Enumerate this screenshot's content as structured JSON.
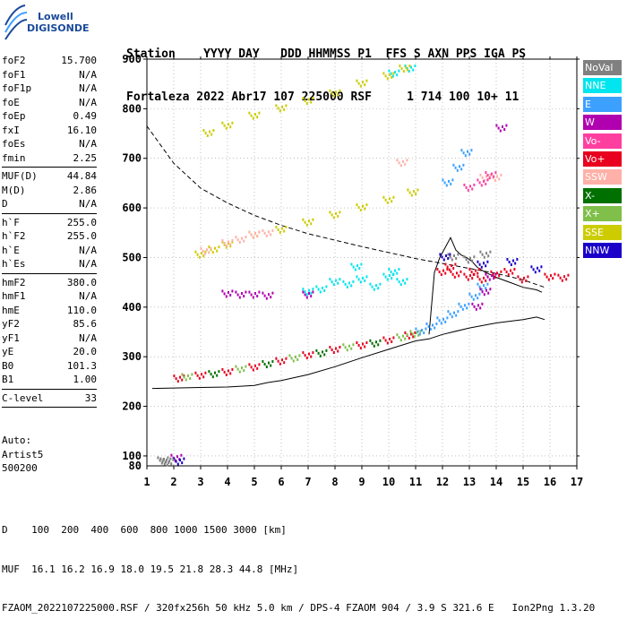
{
  "logo": {
    "line1": "Lowell",
    "line2": "DIGISONDE"
  },
  "header": {
    "labels": "Station    YYYY DAY   DDD HHMMSS P1  FFS S AXN PPS IGA PS",
    "values": "Fortaleza 2022 Abr17 107 225000 RSF     1 714 100 10+ 11"
  },
  "params": [
    {
      "key": "foF2",
      "value": "15.700"
    },
    {
      "key": "foF1",
      "value": "N/A"
    },
    {
      "key": "foF1p",
      "value": "N/A"
    },
    {
      "key": "foE",
      "value": "N/A"
    },
    {
      "key": "foEp",
      "value": "0.49"
    },
    {
      "key": "fxI",
      "value": "16.10"
    },
    {
      "key": "foEs",
      "value": "N/A"
    },
    {
      "key": "fmin",
      "value": "2.25"
    },
    {
      "sep": true
    },
    {
      "key": "MUF(D)",
      "value": "44.84"
    },
    {
      "key": "M(D)",
      "value": "2.86"
    },
    {
      "key": "D",
      "value": "N/A"
    },
    {
      "sep": true
    },
    {
      "key": "h`F",
      "value": "255.0"
    },
    {
      "key": "h`F2",
      "value": "255.0"
    },
    {
      "key": "h`E",
      "value": "N/A"
    },
    {
      "key": "h`Es",
      "value": "N/A"
    },
    {
      "sep": true
    },
    {
      "key": "hmF2",
      "value": "380.0"
    },
    {
      "key": "hmF1",
      "value": "N/A"
    },
    {
      "key": "hmE",
      "value": "110.0"
    },
    {
      "key": "yF2",
      "value": "85.6"
    },
    {
      "key": "yF1",
      "value": "N/A"
    },
    {
      "key": "yE",
      "value": "20.0"
    },
    {
      "key": "B0",
      "value": "101.3"
    },
    {
      "key": "B1",
      "value": "1.00"
    },
    {
      "sep": true
    },
    {
      "key": "C-level",
      "value": "33"
    },
    {
      "sep": true
    }
  ],
  "auto": [
    "Auto:",
    "Artist5",
    "500200"
  ],
  "footer": {
    "line1": "D    100  200  400  600  800 1000 1500 3000 [km]",
    "line2": "MUF  16.1 16.2 16.9 18.0 19.5 21.8 28.3 44.8 [MHz]",
    "line3": "FZAOM_2022107225000.RSF / 320fx256h 50 kHz 5.0 km / DPS-4 FZAOM 904 / 3.9 S 321.6 E   Ion2Png 1.3.20"
  },
  "legend": [
    {
      "label": "NoVal",
      "color": "#808080"
    },
    {
      "label": "NNE",
      "color": "#00e5ee"
    },
    {
      "label": "E",
      "color": "#3ca0ff"
    },
    {
      "label": "W",
      "color": "#b000b0"
    },
    {
      "label": "Vo-",
      "color": "#ff3fa0"
    },
    {
      "label": "Vo+",
      "color": "#e8001e"
    },
    {
      "label": "SSW",
      "color": "#ffb0a8"
    },
    {
      "label": "X-",
      "color": "#007000"
    },
    {
      "label": "X+",
      "color": "#7fbf4a"
    },
    {
      "label": "SSE",
      "color": "#cccc00"
    },
    {
      "label": "NNW",
      "color": "#1a00c8"
    }
  ],
  "chart_data": {
    "type": "scatter",
    "xlim": [
      1,
      17
    ],
    "ylim": [
      80,
      900
    ],
    "xticks": [
      1,
      2,
      3,
      4,
      5,
      6,
      7,
      8,
      9,
      10,
      11,
      12,
      13,
      14,
      15,
      16,
      17
    ],
    "yticks": [
      100,
      200,
      300,
      400,
      500,
      600,
      700,
      800,
      900
    ],
    "ytick_labels_extra": [
      {
        "value": 80,
        "label": "80"
      }
    ],
    "series": [
      {
        "name": "Vo+",
        "color": "#e8001e",
        "points": [
          [
            2.2,
            255
          ],
          [
            3,
            261
          ],
          [
            4,
            268
          ],
          [
            5,
            278
          ],
          [
            6,
            290
          ],
          [
            7,
            302
          ],
          [
            8,
            313
          ],
          [
            9,
            322
          ],
          [
            10,
            332
          ],
          [
            10.8,
            342
          ],
          [
            12,
            470
          ],
          [
            12.5,
            465
          ],
          [
            13,
            460
          ],
          [
            13.5,
            455
          ],
          [
            14,
            465
          ],
          [
            14.5,
            470
          ],
          [
            15,
            455
          ],
          [
            16,
            460
          ],
          [
            16.5,
            458
          ],
          [
            12.3,
            480
          ],
          [
            13.2,
            470
          ]
        ]
      },
      {
        "name": "X+",
        "color": "#7fbf4a",
        "points": [
          [
            2.5,
            258
          ],
          [
            4.5,
            274
          ],
          [
            6.5,
            296
          ],
          [
            8.5,
            318
          ],
          [
            10.5,
            338
          ],
          [
            11,
            345
          ]
        ]
      },
      {
        "name": "X-",
        "color": "#007000",
        "points": [
          [
            3.5,
            264
          ],
          [
            5.5,
            284
          ],
          [
            7.5,
            306
          ],
          [
            9.5,
            326
          ]
        ]
      },
      {
        "name": "E",
        "color": "#3ca0ff",
        "points": [
          [
            11.2,
            350
          ],
          [
            11.6,
            360
          ],
          [
            12,
            372
          ],
          [
            12.4,
            385
          ],
          [
            12.8,
            400
          ],
          [
            13.2,
            420
          ],
          [
            13.5,
            440
          ],
          [
            12.2,
            650
          ],
          [
            12.6,
            680
          ],
          [
            12.9,
            710
          ]
        ]
      },
      {
        "name": "W",
        "color": "#b000b0",
        "points": [
          [
            4,
            426
          ],
          [
            4.5,
            424
          ],
          [
            5,
            424
          ],
          [
            5.5,
            422
          ],
          [
            7,
            424
          ],
          [
            13.3,
            400
          ],
          [
            13.6,
            430
          ],
          [
            13.8,
            460
          ],
          [
            14.2,
            760
          ],
          [
            2.1,
            95
          ]
        ]
      },
      {
        "name": "NNE",
        "color": "#00e5ee",
        "points": [
          [
            7,
            430
          ],
          [
            7.5,
            435
          ],
          [
            8,
            450
          ],
          [
            8.5,
            445
          ],
          [
            9,
            455
          ],
          [
            9.5,
            440
          ],
          [
            10,
            460
          ],
          [
            10.5,
            450
          ],
          [
            8.8,
            480
          ],
          [
            10.2,
            470
          ],
          [
            10.8,
            880
          ],
          [
            10.2,
            870
          ]
        ]
      },
      {
        "name": "SSE",
        "color": "#cccc00",
        "points": [
          [
            3,
            505
          ],
          [
            3.5,
            515
          ],
          [
            4,
            525
          ],
          [
            5,
            545
          ],
          [
            6,
            555
          ],
          [
            7,
            570
          ],
          [
            8,
            585
          ],
          [
            9,
            600
          ],
          [
            10,
            615
          ],
          [
            10.9,
            630
          ],
          [
            3.3,
            750
          ],
          [
            4,
            765
          ],
          [
            5,
            785
          ],
          [
            6,
            800
          ],
          [
            7,
            815
          ],
          [
            8,
            830
          ],
          [
            9,
            850
          ],
          [
            10,
            865
          ],
          [
            10.6,
            880
          ]
        ]
      },
      {
        "name": "SSW",
        "color": "#ffb0a8",
        "points": [
          [
            3.2,
            512
          ],
          [
            4,
            528
          ],
          [
            4.5,
            535
          ],
          [
            5,
            545
          ],
          [
            5.5,
            548
          ],
          [
            13.6,
            660
          ],
          [
            14,
            660
          ],
          [
            10.5,
            690
          ]
        ]
      },
      {
        "name": "Vo-",
        "color": "#ff3fa0",
        "points": [
          [
            13,
            640
          ],
          [
            13.5,
            650
          ],
          [
            13.8,
            665
          ]
        ]
      },
      {
        "name": "NNW",
        "color": "#1a00c8",
        "points": [
          [
            12.1,
            500
          ],
          [
            13.5,
            485
          ],
          [
            14.6,
            490
          ],
          [
            15.5,
            475
          ],
          [
            2.2,
            88
          ]
        ]
      },
      {
        "name": "NoVal",
        "color": "#808080",
        "points": [
          [
            1.6,
            90
          ],
          [
            1.7,
            88
          ],
          [
            1.8,
            86
          ],
          [
            12.4,
            500
          ],
          [
            13,
            495
          ],
          [
            13.6,
            505
          ]
        ]
      }
    ],
    "curves": [
      {
        "style": "solid",
        "points": [
          [
            1.2,
            236
          ],
          [
            2,
            237
          ],
          [
            3,
            238
          ],
          [
            4,
            239
          ],
          [
            5,
            242
          ],
          [
            5.5,
            248
          ],
          [
            6,
            252
          ],
          [
            7,
            264
          ],
          [
            8,
            280
          ],
          [
            9,
            298
          ],
          [
            10,
            315
          ],
          [
            11,
            332
          ],
          [
            11.5,
            336
          ],
          [
            12,
            345
          ],
          [
            13,
            358
          ],
          [
            14,
            368
          ],
          [
            15,
            375
          ],
          [
            15.5,
            380
          ],
          [
            15.8,
            375
          ]
        ]
      },
      {
        "style": "dashed",
        "points": [
          [
            1,
            765
          ],
          [
            2,
            690
          ],
          [
            3,
            640
          ],
          [
            4,
            610
          ],
          [
            5,
            585
          ],
          [
            6,
            565
          ],
          [
            7,
            548
          ],
          [
            8,
            535
          ],
          [
            9,
            522
          ],
          [
            10,
            510
          ],
          [
            11,
            498
          ],
          [
            12,
            488
          ],
          [
            13,
            478
          ],
          [
            14,
            468
          ],
          [
            15,
            455
          ],
          [
            15.8,
            440
          ]
        ]
      },
      {
        "style": "solid",
        "points": [
          [
            11.5,
            345
          ],
          [
            11.7,
            470
          ],
          [
            11.9,
            500
          ],
          [
            12.1,
            520
          ],
          [
            12.3,
            540
          ],
          [
            12.5,
            515
          ],
          [
            12.7,
            505
          ],
          [
            12.9,
            500
          ],
          [
            13.1,
            492
          ],
          [
            13.3,
            480
          ],
          [
            13.6,
            470
          ],
          [
            14,
            460
          ],
          [
            14.5,
            450
          ],
          [
            15,
            440
          ],
          [
            15.5,
            435
          ],
          [
            15.7,
            430
          ]
        ]
      }
    ]
  }
}
